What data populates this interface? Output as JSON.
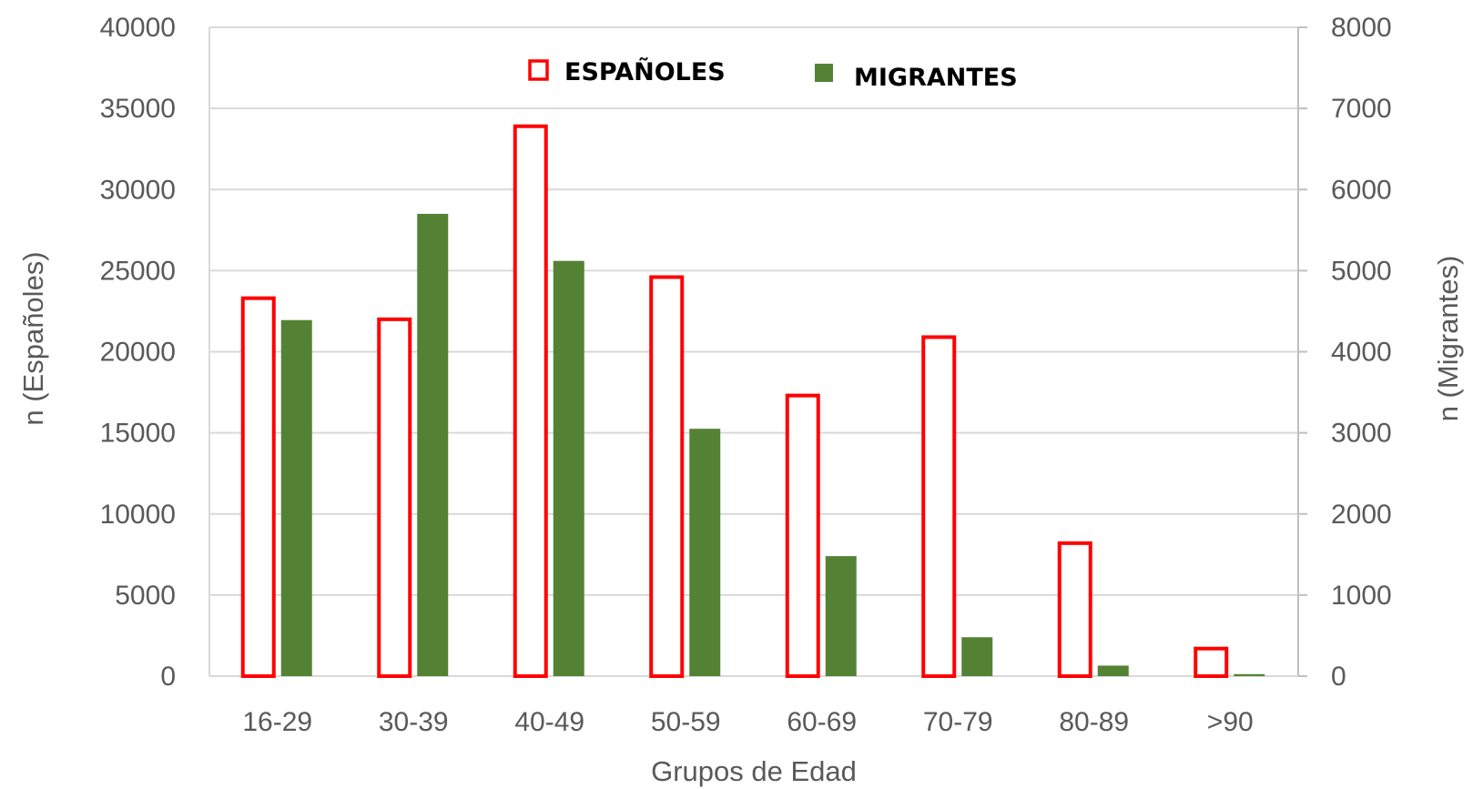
{
  "chart_data": {
    "type": "bar",
    "categories": [
      "16-29",
      "30-39",
      "40-49",
      "50-59",
      "60-69",
      "70-79",
      "80-89",
      ">90"
    ],
    "series": [
      {
        "name": "ESPAÑOLES",
        "axis": "left",
        "style": "outline",
        "color": "#ff0000",
        "values": [
          23300,
          22000,
          33900,
          24600,
          17300,
          20900,
          8200,
          1700
        ]
      },
      {
        "name": "MIGRANTES",
        "axis": "right",
        "style": "filled",
        "color": "#548235",
        "values": [
          4390,
          5700,
          5120,
          3050,
          1480,
          480,
          130,
          25
        ]
      }
    ],
    "title": "",
    "xlabel": "Grupos de Edad",
    "ylabel_left": "n (Españoles)",
    "ylabel_right": "n (Migrantes)",
    "ylim_left": [
      0,
      40000
    ],
    "ylim_right": [
      0,
      8000
    ],
    "yticks_left": [
      "0",
      "5000",
      "10000",
      "15000",
      "20000",
      "25000",
      "30000",
      "35000",
      "40000"
    ],
    "yticks_right": [
      "0",
      "1000",
      "2000",
      "3000",
      "4000",
      "5000",
      "6000",
      "7000",
      "8000"
    ],
    "grid": true,
    "legend_position": "top-center"
  }
}
